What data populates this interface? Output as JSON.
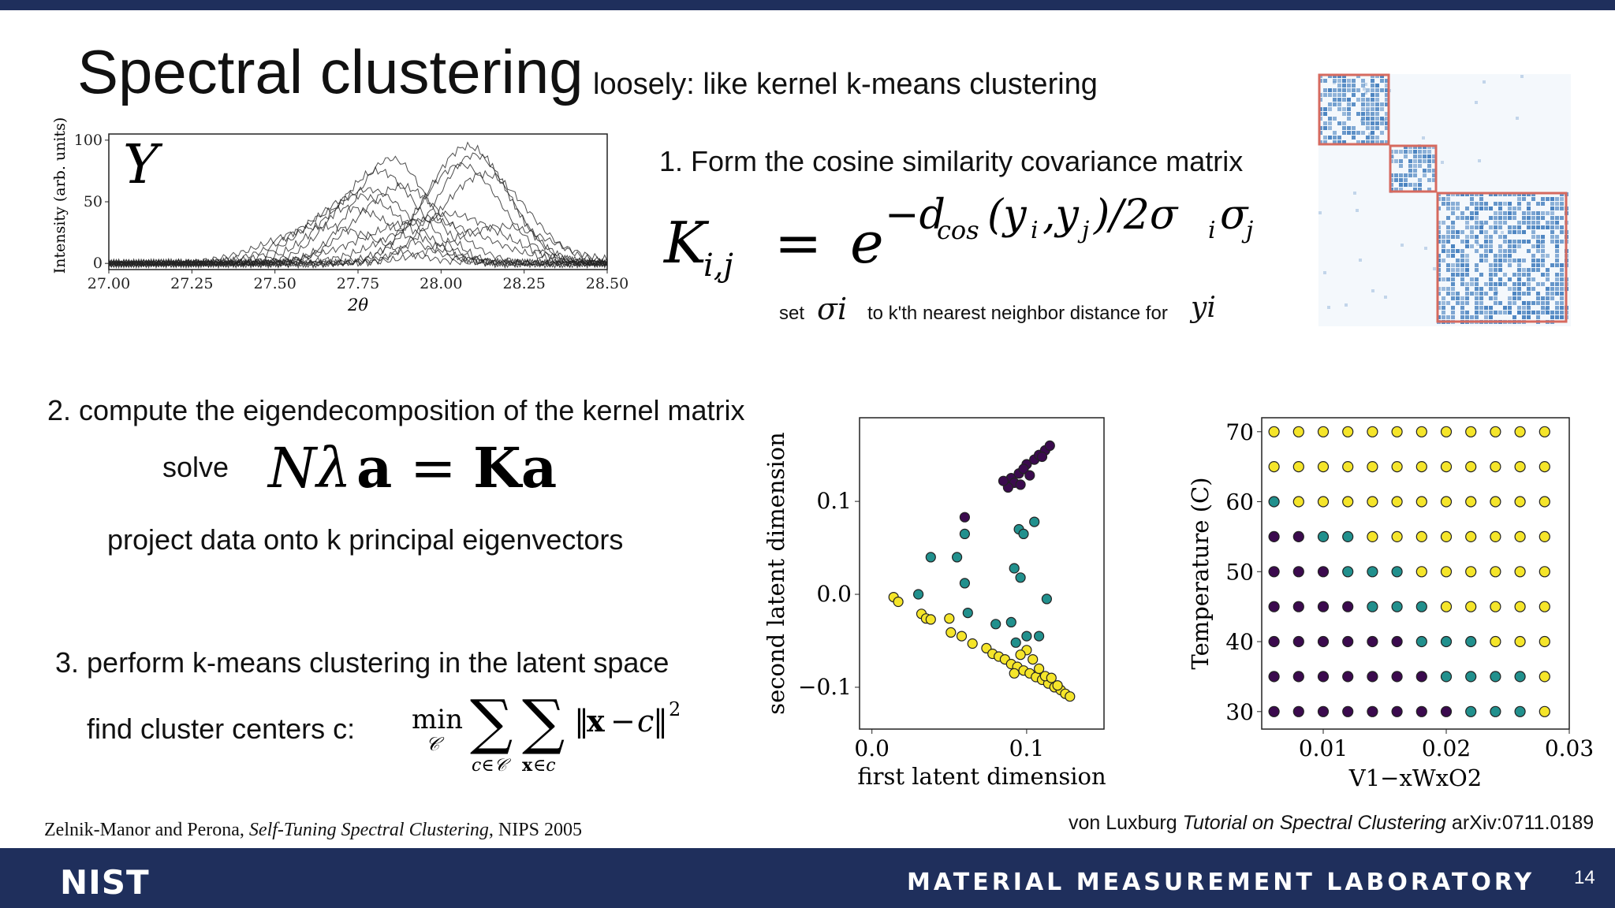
{
  "slide": {
    "title": "Spectral clustering",
    "subtitle": "loosely: like kernel k-means clustering",
    "page_number": "14"
  },
  "step1": {
    "heading": "1. Form the cosine similarity covariance matrix",
    "note_set": "set",
    "note_sigma": "σi",
    "note_mid": "to k'th nearest neighbor distance for",
    "note_y": "yi"
  },
  "step2": {
    "heading": "2. compute the eigendecomposition of the kernel matrix",
    "solve_label": "solve",
    "project_text": "project data onto k principal eigenvectors"
  },
  "step3": {
    "heading": "3. perform k-means clustering in the latent space",
    "find_label": "find cluster centers c:"
  },
  "citations": {
    "left_authors": "Zelnik-Manor and Perona, ",
    "left_title": "Self-Tuning Spectral Clustering",
    "left_venue": ", NIPS 2005",
    "right_author": "von Luxburg ",
    "right_title": "Tutorial on Spectral Clustering",
    "right_ref": " arXiv:0711.0189"
  },
  "footer": {
    "logo_text": "NIST",
    "lab_name": "MATERIAL MEASUREMENT LABORATORY"
  },
  "colors": {
    "nist_navy": "#1f2f5c",
    "cluster_purple": "#3b0a4e",
    "cluster_teal": "#21908d",
    "cluster_yellow": "#f5e52a",
    "matrix_blue": "#2a6db5",
    "highlight_box": "#d66a5f"
  },
  "chart_data": [
    {
      "type": "line",
      "label": "Y",
      "ylabel": "Intensity (arb. units)",
      "xlabel": "2θ",
      "xlim": [
        27.0,
        28.5
      ],
      "ylim": [
        -5,
        105
      ],
      "xticks": [
        "27.00",
        "27.25",
        "27.50",
        "27.75",
        "28.00",
        "28.25",
        "28.50"
      ],
      "yticks": [
        "0",
        "50",
        "100"
      ],
      "series": [
        {
          "peak": 27.78,
          "height": 60,
          "width": 0.13
        },
        {
          "peak": 27.81,
          "height": 75,
          "width": 0.12
        },
        {
          "peak": 27.75,
          "height": 55,
          "width": 0.14
        },
        {
          "peak": 27.85,
          "height": 85,
          "width": 0.11
        },
        {
          "peak": 27.72,
          "height": 45,
          "width": 0.15
        },
        {
          "peak": 27.88,
          "height": 62,
          "width": 0.13
        },
        {
          "peak": 28.08,
          "height": 95,
          "width": 0.12
        },
        {
          "peak": 28.1,
          "height": 88,
          "width": 0.11
        },
        {
          "peak": 28.06,
          "height": 80,
          "width": 0.12
        },
        {
          "peak": 28.13,
          "height": 72,
          "width": 0.13
        },
        {
          "peak": 28.02,
          "height": 40,
          "width": 0.16
        },
        {
          "peak": 27.95,
          "height": 35,
          "width": 0.18
        },
        {
          "peak": 28.18,
          "height": 30,
          "width": 0.15
        },
        {
          "peak": 27.65,
          "height": 30,
          "width": 0.16
        }
      ]
    },
    {
      "type": "scatter",
      "xlabel": "first latent dimension",
      "ylabel": "second latent dimension",
      "xlim": [
        -0.008,
        0.15
      ],
      "ylim": [
        -0.145,
        0.19
      ],
      "xticks": [
        "0.0",
        "0.1"
      ],
      "yticks": [
        "0.1",
        "0.0",
        "−0.1"
      ],
      "series": [
        {
          "cluster": "purple",
          "points": [
            [
              0.09,
              0.125
            ],
            [
              0.095,
              0.13
            ],
            [
              0.1,
              0.14
            ],
            [
              0.105,
              0.145
            ],
            [
              0.108,
              0.15
            ],
            [
              0.112,
              0.155
            ],
            [
              0.115,
              0.16
            ],
            [
              0.092,
              0.12
            ],
            [
              0.098,
              0.135
            ],
            [
              0.102,
              0.128
            ],
            [
              0.088,
              0.115
            ],
            [
              0.096,
              0.118
            ],
            [
              0.11,
              0.148
            ],
            [
              0.085,
              0.122
            ],
            [
              0.06,
              0.083
            ]
          ]
        },
        {
          "cluster": "teal",
          "points": [
            [
              0.095,
              0.07
            ],
            [
              0.098,
              0.065
            ],
            [
              0.105,
              0.078
            ],
            [
              0.06,
              0.065
            ],
            [
              0.038,
              0.04
            ],
            [
              0.055,
              0.04
            ],
            [
              0.06,
              0.012
            ],
            [
              0.03,
              0.0
            ],
            [
              0.092,
              0.028
            ],
            [
              0.096,
              0.018
            ],
            [
              0.062,
              -0.02
            ],
            [
              0.08,
              -0.032
            ],
            [
              0.09,
              -0.03
            ],
            [
              0.1,
              -0.045
            ],
            [
              0.108,
              -0.045
            ],
            [
              0.113,
              -0.005
            ],
            [
              0.093,
              -0.052
            ]
          ]
        },
        {
          "cluster": "yellow",
          "points": [
            [
              0.014,
              -0.003
            ],
            [
              0.017,
              -0.008
            ],
            [
              0.032,
              -0.021
            ],
            [
              0.035,
              -0.026
            ],
            [
              0.038,
              -0.027
            ],
            [
              0.05,
              -0.026
            ],
            [
              0.051,
              -0.041
            ],
            [
              0.058,
              -0.045
            ],
            [
              0.065,
              -0.053
            ],
            [
              0.074,
              -0.058
            ],
            [
              0.078,
              -0.064
            ],
            [
              0.082,
              -0.067
            ],
            [
              0.086,
              -0.07
            ],
            [
              0.09,
              -0.075
            ],
            [
              0.094,
              -0.078
            ],
            [
              0.098,
              -0.082
            ],
            [
              0.102,
              -0.085
            ],
            [
              0.106,
              -0.089
            ],
            [
              0.11,
              -0.092
            ],
            [
              0.114,
              -0.096
            ],
            [
              0.118,
              -0.1
            ],
            [
              0.122,
              -0.103
            ],
            [
              0.125,
              -0.107
            ],
            [
              0.128,
              -0.11
            ],
            [
              0.1,
              -0.06
            ],
            [
              0.096,
              -0.065
            ],
            [
              0.104,
              -0.07
            ],
            [
              0.112,
              -0.088
            ],
            [
              0.12,
              -0.098
            ],
            [
              0.116,
              -0.09
            ],
            [
              0.108,
              -0.08
            ],
            [
              0.092,
              -0.085
            ]
          ]
        }
      ]
    },
    {
      "type": "scatter",
      "xlabel": "V1−xWxO2",
      "ylabel": "Temperature (C)",
      "xlim": [
        0.005,
        0.03
      ],
      "ylim": [
        27.5,
        72
      ],
      "xticks": [
        "0.01",
        "0.02",
        "0.03"
      ],
      "yticks": [
        "30",
        "40",
        "50",
        "60",
        "70"
      ],
      "grid_x": [
        0.006,
        0.008,
        0.01,
        0.012,
        0.014,
        0.016,
        0.018,
        0.02,
        0.022,
        0.024,
        0.026,
        0.028
      ],
      "grid_y": [
        70,
        65,
        60,
        55,
        50,
        45,
        40,
        35,
        30
      ],
      "cluster_rows": [
        "YYYYYYYYYYYY",
        "YYYYYYYYYYYY",
        "TYYYYYYYYYYY",
        "PPTTYYYYYYYY",
        "PPPTTTYYYYYY",
        "PPPPTTTYYYYY",
        "PPPPPPTTTYYY",
        "PPPPPPPTTTTY",
        "PPPPPPPPTTTY"
      ]
    }
  ]
}
